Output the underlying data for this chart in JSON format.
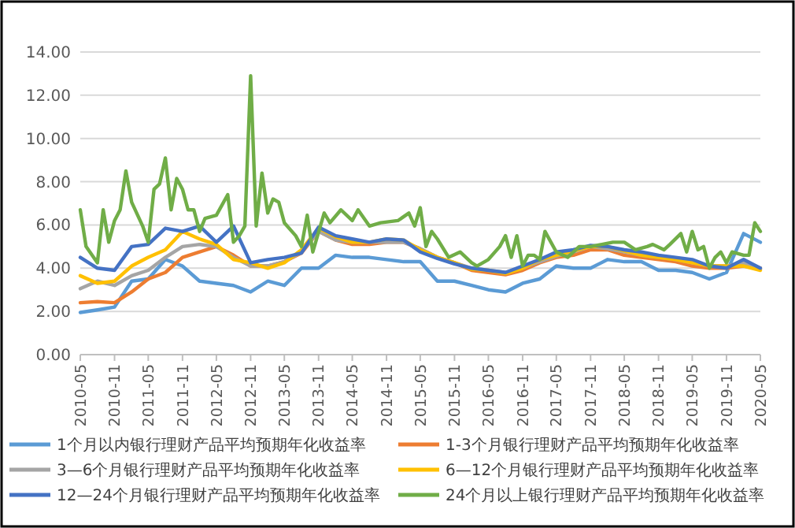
{
  "chart_data": {
    "type": "line",
    "x": [
      "2010-05",
      "2010-08",
      "2010-11",
      "2011-02",
      "2011-05",
      "2011-08",
      "2011-11",
      "2012-02",
      "2012-05",
      "2012-08",
      "2012-11",
      "2013-02",
      "2013-05",
      "2013-08",
      "2013-11",
      "2014-02",
      "2014-05",
      "2014-08",
      "2014-11",
      "2015-02",
      "2015-05",
      "2015-08",
      "2015-11",
      "2016-02",
      "2016-05",
      "2016-08",
      "2016-11",
      "2017-02",
      "2017-05",
      "2017-08",
      "2017-11",
      "2018-02",
      "2018-05",
      "2018-08",
      "2018-11",
      "2019-02",
      "2019-05",
      "2019-08",
      "2019-11",
      "2020-02",
      "2020-05"
    ],
    "series": [
      {
        "name": "1个月以内银行理财产品平均预期年化收益率",
        "color": "#5b9bd5",
        "values": [
          1.95,
          2.07,
          2.2,
          3.4,
          3.5,
          4.4,
          4.1,
          3.4,
          3.3,
          3.2,
          2.9,
          3.4,
          3.2,
          4.0,
          4.0,
          4.6,
          4.5,
          4.5,
          4.4,
          4.3,
          4.3,
          3.4,
          3.4,
          3.2,
          3.0,
          2.9,
          3.3,
          3.5,
          4.1,
          4.0,
          4.0,
          4.4,
          4.3,
          4.3,
          3.9,
          3.9,
          3.8,
          3.5,
          3.8,
          5.6,
          5.2
        ]
      },
      {
        "name": "1-3个月银行理财产品平均预期年化收益率",
        "color": "#ed7d31",
        "values": [
          2.4,
          2.45,
          2.4,
          2.9,
          3.5,
          3.8,
          4.5,
          4.75,
          5.0,
          4.6,
          4.1,
          4.1,
          4.3,
          4.7,
          5.7,
          5.3,
          5.1,
          5.1,
          5.2,
          5.2,
          4.9,
          4.5,
          4.25,
          3.9,
          3.8,
          3.7,
          3.9,
          4.25,
          4.5,
          4.6,
          4.85,
          4.85,
          4.6,
          4.5,
          4.4,
          4.3,
          4.1,
          4.0,
          4.0,
          4.1,
          4.0
        ]
      },
      {
        "name": "3—6个月银行理财产品平均预期年化收益率",
        "color": "#a5a5a5",
        "values": [
          3.05,
          3.4,
          3.2,
          3.65,
          3.9,
          4.5,
          5.0,
          5.1,
          5.0,
          4.5,
          4.1,
          4.1,
          4.3,
          4.75,
          5.7,
          5.3,
          5.2,
          5.2,
          5.2,
          5.2,
          4.9,
          4.5,
          4.25,
          4.0,
          3.9,
          3.8,
          4.0,
          4.3,
          4.55,
          4.75,
          5.0,
          4.9,
          4.75,
          4.6,
          4.5,
          4.4,
          4.25,
          4.1,
          4.1,
          4.25,
          3.95
        ]
      },
      {
        "name": "6—12个月银行理财产品平均预期年化收益率",
        "color": "#ffc000",
        "values": [
          3.65,
          3.3,
          3.4,
          4.1,
          4.5,
          4.85,
          5.7,
          5.35,
          5.1,
          4.4,
          4.25,
          4.0,
          4.25,
          4.85,
          5.85,
          5.45,
          5.2,
          5.2,
          5.35,
          5.3,
          4.85,
          4.5,
          4.25,
          3.95,
          3.9,
          3.75,
          4.0,
          4.4,
          4.6,
          4.8,
          5.0,
          5.0,
          4.8,
          4.6,
          4.5,
          4.4,
          4.25,
          4.1,
          4.1,
          4.1,
          3.9
        ]
      },
      {
        "name": "12—24个月银行理财产品平均预期年化收益率",
        "color": "#4472c4",
        "values": [
          4.5,
          4.0,
          3.9,
          5.0,
          5.1,
          5.85,
          5.7,
          5.95,
          5.2,
          5.95,
          4.25,
          4.4,
          4.5,
          4.7,
          5.9,
          5.5,
          5.35,
          5.2,
          5.35,
          5.3,
          4.75,
          4.45,
          4.2,
          4.0,
          3.9,
          3.8,
          4.1,
          4.4,
          4.75,
          4.85,
          5.05,
          5.0,
          4.85,
          4.75,
          4.6,
          4.5,
          4.4,
          4.1,
          4.0,
          4.4,
          4.0
        ]
      },
      {
        "name": "24个月以上银行理财产品平均预期年化收益率",
        "color": "#70ad47",
        "x": [
          "2010-05",
          "2010-06",
          "2010-08",
          "2010-09",
          "2010-10",
          "2010-11",
          "2010-12",
          "2011-01",
          "2011-02",
          "2011-04",
          "2011-05",
          "2011-06",
          "2011-07",
          "2011-08",
          "2011-09",
          "2011-10",
          "2011-11",
          "2011-12",
          "2012-01",
          "2012-02",
          "2012-03",
          "2012-05",
          "2012-07",
          "2012-08",
          "2012-09",
          "2012-10",
          "2012-11",
          "2012-12",
          "2013-01",
          "2013-02",
          "2013-03",
          "2013-04",
          "2013-05",
          "2013-07",
          "2013-08",
          "2013-09",
          "2013-10",
          "2013-12",
          "2014-01",
          "2014-03",
          "2014-05",
          "2014-06",
          "2014-08",
          "2014-10",
          "2015-01",
          "2015-03",
          "2015-04",
          "2015-05",
          "2015-06",
          "2015-07",
          "2015-08",
          "2015-10",
          "2015-12",
          "2016-02",
          "2016-03",
          "2016-05",
          "2016-07",
          "2016-08",
          "2016-09",
          "2016-10",
          "2016-11",
          "2016-12",
          "2017-01",
          "2017-02",
          "2017-03",
          "2017-05",
          "2017-07",
          "2017-09",
          "2017-11",
          "2018-01",
          "2018-03",
          "2018-05",
          "2018-07",
          "2018-09",
          "2018-10",
          "2018-12",
          "2019-01",
          "2019-03",
          "2019-04",
          "2019-05",
          "2019-06",
          "2019-07",
          "2019-08",
          "2019-09",
          "2019-10",
          "2019-11",
          "2019-12",
          "2020-02",
          "2020-03",
          "2020-04",
          "2020-05"
        ],
        "values": [
          6.7,
          5.0,
          4.25,
          6.7,
          5.2,
          6.2,
          6.7,
          8.5,
          7.05,
          5.95,
          5.2,
          7.65,
          7.9,
          9.1,
          6.7,
          8.15,
          7.65,
          6.7,
          6.7,
          5.7,
          6.3,
          6.45,
          7.4,
          5.2,
          5.5,
          5.95,
          12.9,
          5.95,
          8.4,
          6.55,
          7.2,
          7.05,
          6.1,
          5.5,
          5.0,
          6.45,
          4.75,
          6.55,
          6.1,
          6.7,
          6.2,
          6.7,
          5.95,
          6.1,
          6.2,
          6.55,
          5.95,
          6.8,
          5.0,
          5.7,
          5.35,
          4.5,
          4.75,
          4.25,
          4.1,
          4.4,
          5.0,
          5.5,
          4.5,
          5.5,
          4.1,
          4.6,
          4.6,
          4.4,
          5.7,
          4.75,
          4.5,
          5.0,
          5.0,
          5.1,
          5.2,
          5.2,
          4.85,
          5.0,
          5.1,
          4.85,
          5.1,
          5.6,
          4.75,
          5.7,
          4.85,
          5.0,
          4.0,
          4.5,
          4.75,
          4.25,
          4.75,
          4.6,
          4.6,
          6.1,
          5.7
        ]
      }
    ],
    "xlim": [
      "2010-05",
      "2020-05"
    ],
    "xticks": [
      "2010-05",
      "2010-11",
      "2011-05",
      "2011-11",
      "2012-05",
      "2012-11",
      "2013-05",
      "2013-11",
      "2014-05",
      "2014-11",
      "2015-05",
      "2015-11",
      "2016-05",
      "2016-11",
      "2017-05",
      "2017-11",
      "2018-05",
      "2018-11",
      "2019-05",
      "2019-11",
      "2020-05"
    ],
    "ylim": [
      0,
      14
    ],
    "yticks": [
      {
        "value": 0,
        "label": "0.00"
      },
      {
        "value": 2,
        "label": "2.00"
      },
      {
        "value": 4,
        "label": "4.00"
      },
      {
        "value": 6,
        "label": "6.00"
      },
      {
        "value": 8,
        "label": "8.00"
      },
      {
        "value": 10,
        "label": "10.00"
      },
      {
        "value": 12,
        "label": "12.00"
      },
      {
        "value": 14,
        "label": "14.00"
      }
    ],
    "grid": "y",
    "legend": "bottom",
    "line_style": "solid",
    "marker": "none"
  }
}
